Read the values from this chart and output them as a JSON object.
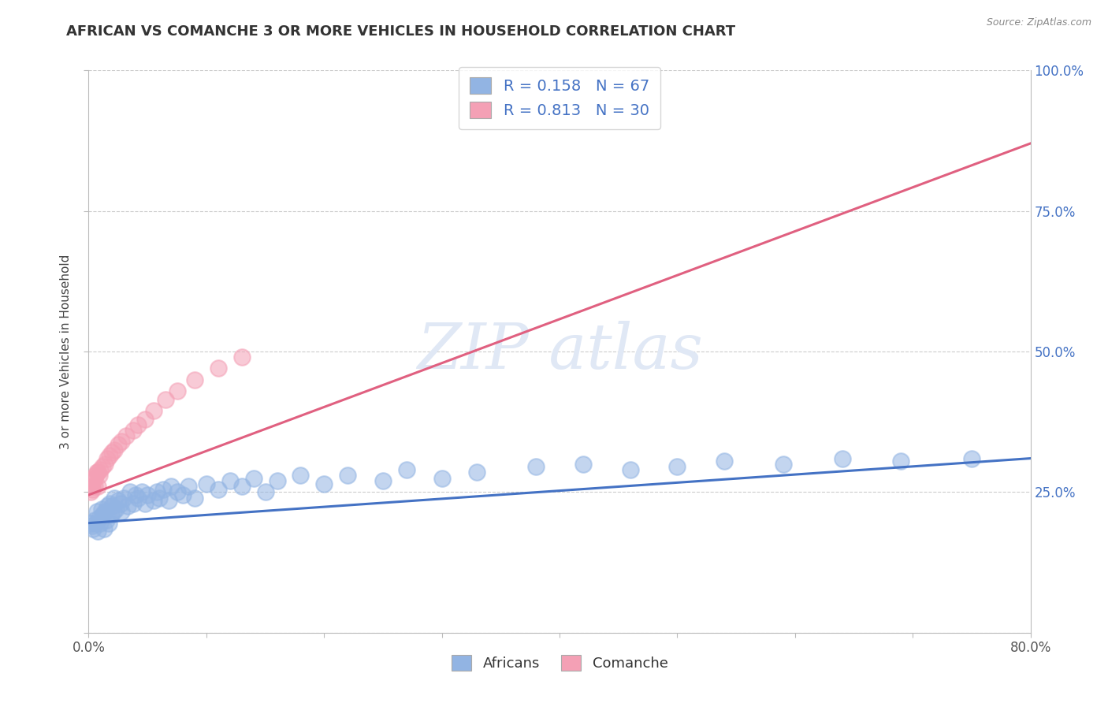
{
  "title": "AFRICAN VS COMANCHE 3 OR MORE VEHICLES IN HOUSEHOLD CORRELATION CHART",
  "source": "Source: ZipAtlas.com",
  "ylabel": "3 or more Vehicles in Household",
  "xlabel_africans": "Africans",
  "xlabel_comanche": "Comanche",
  "xlim": [
    0.0,
    0.8
  ],
  "ylim": [
    0.0,
    1.0
  ],
  "xtick_positions": [
    0.0,
    0.1,
    0.2,
    0.3,
    0.4,
    0.5,
    0.6,
    0.7,
    0.8
  ],
  "xtick_labels": [
    "0.0%",
    "",
    "",
    "",
    "",
    "",
    "",
    "",
    "80.0%"
  ],
  "ytick_positions": [
    0.0,
    0.25,
    0.5,
    0.75,
    1.0
  ],
  "ytick_labels_right": [
    "",
    "25.0%",
    "50.0%",
    "75.0%",
    "100.0%"
  ],
  "africans_R": 0.158,
  "africans_N": 67,
  "comanche_R": 0.813,
  "comanche_N": 30,
  "africans_color": "#92b4e3",
  "comanche_color": "#f4a0b5",
  "africans_line_color": "#4472c4",
  "comanche_line_color": "#e06080",
  "africans_line_y0": 0.195,
  "africans_line_y1": 0.31,
  "comanche_line_y0": 0.245,
  "comanche_line_y1": 0.87,
  "watermark_text": "ZIP atlas",
  "africans_scatter_x": [
    0.002,
    0.003,
    0.004,
    0.005,
    0.006,
    0.007,
    0.008,
    0.009,
    0.01,
    0.011,
    0.012,
    0.013,
    0.014,
    0.015,
    0.016,
    0.017,
    0.018,
    0.019,
    0.02,
    0.021,
    0.022,
    0.023,
    0.025,
    0.027,
    0.028,
    0.03,
    0.033,
    0.035,
    0.038,
    0.04,
    0.042,
    0.045,
    0.048,
    0.05,
    0.055,
    0.058,
    0.06,
    0.063,
    0.068,
    0.07,
    0.075,
    0.08,
    0.085,
    0.09,
    0.1,
    0.11,
    0.12,
    0.13,
    0.14,
    0.15,
    0.16,
    0.18,
    0.2,
    0.22,
    0.25,
    0.27,
    0.3,
    0.33,
    0.38,
    0.42,
    0.46,
    0.5,
    0.54,
    0.59,
    0.64,
    0.69,
    0.75
  ],
  "africans_scatter_y": [
    0.195,
    0.19,
    0.185,
    0.2,
    0.195,
    0.215,
    0.18,
    0.205,
    0.195,
    0.22,
    0.21,
    0.185,
    0.215,
    0.2,
    0.225,
    0.195,
    0.23,
    0.21,
    0.225,
    0.215,
    0.24,
    0.22,
    0.235,
    0.23,
    0.215,
    0.24,
    0.225,
    0.25,
    0.23,
    0.245,
    0.24,
    0.25,
    0.23,
    0.245,
    0.235,
    0.25,
    0.24,
    0.255,
    0.235,
    0.26,
    0.25,
    0.245,
    0.26,
    0.24,
    0.265,
    0.255,
    0.27,
    0.26,
    0.275,
    0.25,
    0.27,
    0.28,
    0.265,
    0.28,
    0.27,
    0.29,
    0.275,
    0.285,
    0.295,
    0.3,
    0.29,
    0.295,
    0.305,
    0.3,
    0.31,
    0.305,
    0.31
  ],
  "comanche_scatter_x": [
    0.002,
    0.003,
    0.004,
    0.005,
    0.006,
    0.007,
    0.008,
    0.009,
    0.01,
    0.012,
    0.014,
    0.016,
    0.018,
    0.02,
    0.022,
    0.025,
    0.028,
    0.032,
    0.038,
    0.042,
    0.048,
    0.055,
    0.065,
    0.075,
    0.09,
    0.11,
    0.13,
    0.008,
    0.003,
    0.005
  ],
  "comanche_scatter_y": [
    0.25,
    0.26,
    0.27,
    0.275,
    0.28,
    0.285,
    0.285,
    0.28,
    0.29,
    0.295,
    0.3,
    0.31,
    0.315,
    0.32,
    0.325,
    0.335,
    0.34,
    0.35,
    0.36,
    0.37,
    0.38,
    0.395,
    0.415,
    0.43,
    0.45,
    0.47,
    0.49,
    0.26,
    0.255,
    0.26
  ]
}
